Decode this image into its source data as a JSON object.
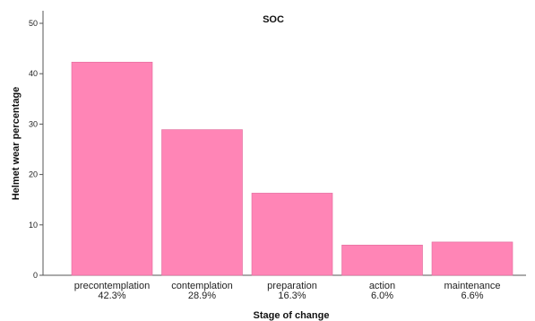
{
  "chart_data": {
    "type": "bar",
    "title": "SOC",
    "xlabel": "Stage of change",
    "ylabel": "Helmet wear percentage",
    "ylim": [
      0,
      50
    ],
    "yticks": [
      0,
      10,
      20,
      30,
      40,
      50
    ],
    "categories": [
      "precontemplation",
      "contemplation",
      "preparation",
      "action",
      "maintenance"
    ],
    "values": [
      42.3,
      28.9,
      16.3,
      6.0,
      6.6
    ],
    "data_labels": [
      "42.3%",
      "28.9%",
      "16.3%",
      "6.0%",
      "6.6%"
    ],
    "bar_color": "#ff85b6",
    "grid": false,
    "legend": "none"
  }
}
